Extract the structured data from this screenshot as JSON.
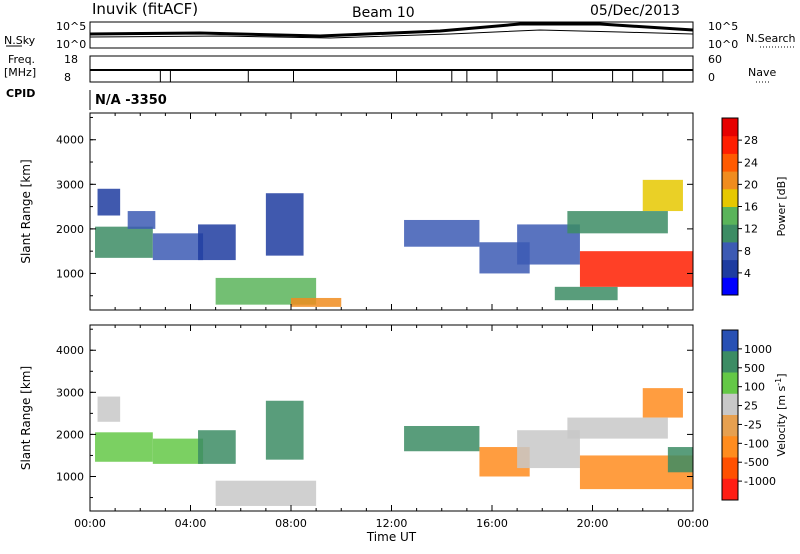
{
  "header": {
    "station": "Inuvik (fitACF)",
    "beam": "Beam 10",
    "date": "05/Dec/2013"
  },
  "info_panel": {
    "left_top_label": "N.Sky",
    "left_top_ticks": [
      "10^5",
      "10^0"
    ],
    "right_top_label": "N.Search",
    "right_top_ticks": [
      "10^5",
      "10^0"
    ],
    "left_bottom_label_1": "Freq.",
    "left_bottom_label_2": "[MHz]",
    "left_bottom_ticks": [
      "18",
      "8"
    ],
    "right_bottom_label": "Nave",
    "right_bottom_ticks": [
      "60",
      "0"
    ],
    "cpid_label": "CPID",
    "cpid_value": "N/A  -3350"
  },
  "colors": {
    "power": [
      "#0000ff",
      "#1e3ca0",
      "#3c5ab4",
      "#3c8c64",
      "#5ab45a",
      "#e6c800",
      "#f08c1e",
      "#ff5a00",
      "#ff1e00",
      "#e60000"
    ],
    "velocity": [
      "#2850b4",
      "#3c8c64",
      "#64c846",
      "#c8c8c8",
      "#e6a050",
      "#ff8c1e",
      "#ff5000",
      "#ff1e14"
    ]
  },
  "chart_data": [
    {
      "type": "heatmap",
      "name": "power",
      "ylabel": "Slant Range [km]",
      "ylim": [
        180,
        4600
      ],
      "yticks": [
        1000,
        2000,
        3000,
        4000
      ],
      "xlim": [
        0,
        24
      ],
      "colorbar_label": "Power [dB]",
      "colorbar_ticks": [
        "4",
        "8",
        "12",
        "16",
        "20",
        "24",
        "28"
      ],
      "colorbar_range": [
        0,
        32
      ],
      "regions": [
        {
          "t0": 0.2,
          "t1": 2.5,
          "r0": 1350,
          "r1": 2050,
          "v": 10
        },
        {
          "t0": 0.3,
          "t1": 1.2,
          "r0": 2300,
          "r1": 2900,
          "v": 6
        },
        {
          "t0": 1.5,
          "t1": 2.6,
          "r0": 2000,
          "r1": 2400,
          "v": 7
        },
        {
          "t0": 2.5,
          "t1": 4.5,
          "r0": 1300,
          "r1": 1900,
          "v": 9
        },
        {
          "t0": 4.3,
          "t1": 5.8,
          "r0": 1300,
          "r1": 2100,
          "v": 6
        },
        {
          "t0": 5.0,
          "t1": 9.0,
          "r0": 300,
          "r1": 900,
          "v": 14
        },
        {
          "t0": 8.0,
          "t1": 10.0,
          "r0": 250,
          "r1": 450,
          "v": 22
        },
        {
          "t0": 7.0,
          "t1": 8.5,
          "r0": 1400,
          "r1": 2800,
          "v": 6
        },
        {
          "t0": 12.5,
          "t1": 15.5,
          "r0": 1600,
          "r1": 2200,
          "v": 9
        },
        {
          "t0": 15.5,
          "t1": 17.5,
          "r0": 1000,
          "r1": 1700,
          "v": 7
        },
        {
          "t0": 17.0,
          "t1": 19.5,
          "r0": 1200,
          "r1": 2100,
          "v": 8
        },
        {
          "t0": 18.5,
          "t1": 21.0,
          "r0": 400,
          "r1": 700,
          "v": 10
        },
        {
          "t0": 19.5,
          "t1": 24.0,
          "r0": 700,
          "r1": 1500,
          "v": 27
        },
        {
          "t0": 22.0,
          "t1": 23.6,
          "r0": 2400,
          "r1": 3100,
          "v": 18
        },
        {
          "t0": 19.0,
          "t1": 23.0,
          "r0": 1900,
          "r1": 2400,
          "v": 11
        }
      ]
    },
    {
      "type": "heatmap",
      "name": "velocity",
      "ylabel": "Slant Range [km]",
      "ylim": [
        180,
        4600
      ],
      "yticks": [
        1000,
        2000,
        3000,
        4000
      ],
      "xlim": [
        0,
        24
      ],
      "xlabel": "Time UT",
      "xticks": [
        "00:00",
        "04:00",
        "08:00",
        "12:00",
        "16:00",
        "20:00",
        "00:00"
      ],
      "colorbar_label": "Velocity [m s",
      "colorbar_label_sup": "-1",
      "colorbar_label_end": "]",
      "colorbar_ticks": [
        "1000",
        "500",
        "100",
        "25",
        "-25",
        "-100",
        "-500",
        "-1000"
      ],
      "regions": [
        {
          "t0": 0.2,
          "t1": 2.5,
          "r0": 1350,
          "r1": 2050,
          "c": 2
        },
        {
          "t0": 0.3,
          "t1": 1.2,
          "r0": 2300,
          "r1": 2900,
          "c": 3
        },
        {
          "t0": 2.5,
          "t1": 4.5,
          "r0": 1300,
          "r1": 1900,
          "c": 2
        },
        {
          "t0": 4.3,
          "t1": 5.8,
          "r0": 1300,
          "r1": 2100,
          "c": 1
        },
        {
          "t0": 5.0,
          "t1": 9.0,
          "r0": 300,
          "r1": 900,
          "c": 3
        },
        {
          "t0": 7.0,
          "t1": 8.5,
          "r0": 1400,
          "r1": 2800,
          "c": 1
        },
        {
          "t0": 12.5,
          "t1": 15.5,
          "r0": 1600,
          "r1": 2200,
          "c": 1
        },
        {
          "t0": 15.5,
          "t1": 17.5,
          "r0": 1000,
          "r1": 1700,
          "c": 5
        },
        {
          "t0": 17.0,
          "t1": 19.5,
          "r0": 1200,
          "r1": 2100,
          "c": 3
        },
        {
          "t0": 19.5,
          "t1": 24.0,
          "r0": 700,
          "r1": 1500,
          "c": 5
        },
        {
          "t0": 22.0,
          "t1": 23.6,
          "r0": 2400,
          "r1": 3100,
          "c": 5
        },
        {
          "t0": 19.0,
          "t1": 23.0,
          "r0": 1900,
          "r1": 2400,
          "c": 3
        },
        {
          "t0": 23.0,
          "t1": 24.0,
          "r0": 1100,
          "r1": 1700,
          "c": 1
        }
      ]
    }
  ]
}
